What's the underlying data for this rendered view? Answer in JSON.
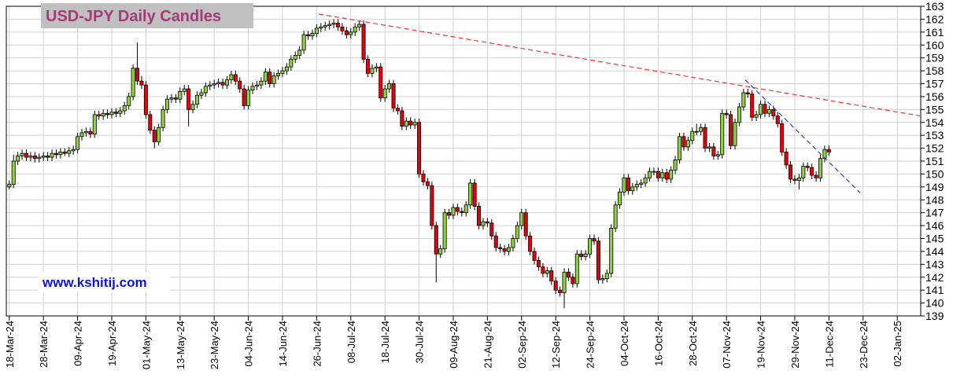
{
  "chart_data": {
    "type": "candlestick",
    "title": "USD-JPY Daily Candles",
    "watermark": "www.kshitij.com",
    "up_color": "#8fd13f",
    "down_color": "#e8000b",
    "grid": true,
    "xlim": [
      -0.7,
      213.5
    ],
    "ylim": [
      139,
      163
    ],
    "yticks": [
      139,
      140,
      141,
      142,
      143,
      144,
      145,
      146,
      147,
      148,
      149,
      150,
      151,
      152,
      153,
      154,
      155,
      156,
      157,
      158,
      159,
      160,
      161,
      162,
      163
    ],
    "xticks": [
      {
        "value": 0,
        "label": "18-Mar-24"
      },
      {
        "value": 8,
        "label": "28-Mar-24"
      },
      {
        "value": 16,
        "label": "09-Apr-24"
      },
      {
        "value": 24,
        "label": "19-Apr-24"
      },
      {
        "value": 32,
        "label": "01-May-24"
      },
      {
        "value": 40,
        "label": "13-May-24"
      },
      {
        "value": 48,
        "label": "23-May-24"
      },
      {
        "value": 56,
        "label": "04-Jun-24"
      },
      {
        "value": 64,
        "label": "14-Jun-24"
      },
      {
        "value": 72,
        "label": "26-Jun-24"
      },
      {
        "value": 80,
        "label": "08-Jul-24"
      },
      {
        "value": 88,
        "label": "18-Jul-24"
      },
      {
        "value": 96,
        "label": "30-Jul-24"
      },
      {
        "value": 104,
        "label": "09-Aug-24"
      },
      {
        "value": 112,
        "label": "21-Aug-24"
      },
      {
        "value": 120,
        "label": "02-Sep-24"
      },
      {
        "value": 128,
        "label": "12-Sep-24"
      },
      {
        "value": 136,
        "label": "24-Sep-24"
      },
      {
        "value": 144,
        "label": "04-Oct-24"
      },
      {
        "value": 152,
        "label": "16-Oct-24"
      },
      {
        "value": 160,
        "label": "28-Oct-24"
      },
      {
        "value": 168,
        "label": "07-Nov-24"
      },
      {
        "value": 176,
        "label": "19-Nov-24"
      },
      {
        "value": 184,
        "label": "29-Nov-24"
      },
      {
        "value": 192,
        "label": "11-Dec-24"
      },
      {
        "value": 200,
        "label": "23-Dec-24"
      },
      {
        "value": 208,
        "label": "02-Jan-25"
      }
    ],
    "x": [
      0,
      1,
      2,
      3,
      4,
      5,
      6,
      7,
      8,
      9,
      10,
      11,
      12,
      13,
      14,
      15,
      16,
      17,
      18,
      19,
      20,
      21,
      22,
      23,
      24,
      25,
      26,
      27,
      28,
      29,
      30,
      31,
      32,
      33,
      34,
      35,
      36,
      37,
      38,
      39,
      40,
      41,
      42,
      43,
      44,
      45,
      46,
      47,
      48,
      49,
      50,
      51,
      52,
      53,
      54,
      55,
      56,
      57,
      58,
      59,
      60,
      61,
      62,
      63,
      64,
      65,
      66,
      67,
      68,
      69,
      70,
      71,
      72,
      73,
      74,
      75,
      76,
      77,
      78,
      79,
      80,
      81,
      82,
      83,
      84,
      85,
      86,
      87,
      88,
      89,
      90,
      91,
      92,
      93,
      94,
      95,
      96,
      97,
      98,
      99,
      100,
      101,
      102,
      103,
      104,
      105,
      106,
      107,
      108,
      109,
      110,
      111,
      112,
      113,
      114,
      115,
      116,
      117,
      118,
      119,
      120,
      121,
      122,
      123,
      124,
      125,
      126,
      127,
      128,
      129,
      130,
      131,
      132,
      133,
      134,
      135,
      136,
      137,
      138,
      139,
      140,
      141,
      142,
      143,
      144,
      145,
      146,
      147,
      148,
      149,
      150,
      151,
      152,
      153,
      154,
      155,
      156,
      157,
      158,
      159,
      160,
      161,
      162,
      163,
      164,
      165,
      166,
      167,
      168,
      169,
      170,
      171,
      172,
      173,
      174,
      175,
      176,
      177,
      178,
      179,
      180,
      181,
      182,
      183,
      184,
      185,
      186,
      187,
      188,
      189,
      190,
      191,
      192
    ],
    "open": [
      149.0,
      149.2,
      151.0,
      151.4,
      151.6,
      151.3,
      151.4,
      151.2,
      151.3,
      151.4,
      151.3,
      151.6,
      151.5,
      151.7,
      151.6,
      151.8,
      151.9,
      152.9,
      153.2,
      153.3,
      153.1,
      154.6,
      154.5,
      154.7,
      154.6,
      154.8,
      154.7,
      154.9,
      155.3,
      156.0,
      158.2,
      157.2,
      156.9,
      154.6,
      153.4,
      152.5,
      153.6,
      155.0,
      155.8,
      155.9,
      155.8,
      156.4,
      156.6,
      155.0,
      155.4,
      156.1,
      156.3,
      156.8,
      156.9,
      157.0,
      157.1,
      156.9,
      157.3,
      157.7,
      157.2,
      156.6,
      155.3,
      156.5,
      156.8,
      156.9,
      157.2,
      157.9,
      157.0,
      157.6,
      157.8,
      158.0,
      158.3,
      158.9,
      159.2,
      159.6,
      160.8,
      160.7,
      160.9,
      161.3,
      161.4,
      161.5,
      161.6,
      161.7,
      161.4,
      161.1,
      160.8,
      161.0,
      161.4,
      161.6,
      158.9,
      157.8,
      158.2,
      158.3,
      155.9,
      156.6,
      157.0,
      155.1,
      154.9,
      153.7,
      154.1,
      153.8,
      154.0,
      150.0,
      149.4,
      149.1,
      146.0,
      143.8,
      144.2,
      147.0,
      146.8,
      147.4,
      147.1,
      147.0,
      147.6,
      149.3,
      147.5,
      146.0,
      146.3,
      146.2,
      145.2,
      144.3,
      144.2,
      144.0,
      144.3,
      145.0,
      146.0,
      147.0,
      145.2,
      144.0,
      143.3,
      142.8,
      142.3,
      142.5,
      141.7,
      141.0,
      140.8,
      142.4,
      142.0,
      141.5,
      143.8,
      143.6,
      143.8,
      145.0,
      144.8,
      141.8,
      141.9,
      142.3,
      145.8,
      147.6,
      148.6,
      149.7,
      148.7,
      149.0,
      149.2,
      149.3,
      149.7,
      150.2,
      150.2,
      149.7,
      150.1,
      149.6,
      150.3,
      151.1,
      152.9,
      152.1,
      152.6,
      153.3,
      153.3,
      153.6,
      152.0,
      152.1,
      151.4,
      151.5,
      154.7,
      154.6,
      152.2,
      154.0,
      155.2,
      156.3,
      156.2,
      154.4,
      154.6,
      155.4,
      154.7,
      155.0,
      154.5,
      153.9,
      151.7,
      150.7,
      149.6,
      149.5,
      149.7,
      150.6,
      150.5,
      149.9,
      149.7,
      151.2,
      151.9
    ],
    "high": [
      149.5,
      151.5,
      151.7,
      151.9,
      151.9,
      151.7,
      151.7,
      151.6,
      151.7,
      151.7,
      151.9,
      151.9,
      152.0,
      152.0,
      152.1,
      152.2,
      153.2,
      153.5,
      153.6,
      153.6,
      154.9,
      154.9,
      155.0,
      155.0,
      155.1,
      155.1,
      155.2,
      155.6,
      156.3,
      158.5,
      160.2,
      157.6,
      157.2,
      154.9,
      153.7,
      153.9,
      155.3,
      156.1,
      156.2,
      156.2,
      156.7,
      156.9,
      156.9,
      155.7,
      156.4,
      156.6,
      157.1,
      157.2,
      157.3,
      157.4,
      157.4,
      157.6,
      158.0,
      158.0,
      157.5,
      156.9,
      156.8,
      157.1,
      157.2,
      157.5,
      158.2,
      158.2,
      157.9,
      158.1,
      158.3,
      158.6,
      159.2,
      159.5,
      159.9,
      161.1,
      161.1,
      161.2,
      161.6,
      161.7,
      161.8,
      161.9,
      162.0,
      162.0,
      161.7,
      161.4,
      161.3,
      161.7,
      161.9,
      161.9,
      159.2,
      158.5,
      158.6,
      158.6,
      156.9,
      157.3,
      157.3,
      155.4,
      155.2,
      154.4,
      154.4,
      154.3,
      154.3,
      150.3,
      149.7,
      149.4,
      146.3,
      144.5,
      147.3,
      147.3,
      147.7,
      147.7,
      147.4,
      147.9,
      149.6,
      149.6,
      147.8,
      146.6,
      146.6,
      146.5,
      145.5,
      144.6,
      144.5,
      144.6,
      145.3,
      146.3,
      147.3,
      147.3,
      145.5,
      144.3,
      143.6,
      143.1,
      142.8,
      142.8,
      142.0,
      141.3,
      142.7,
      142.7,
      142.3,
      144.1,
      144.1,
      144.1,
      145.3,
      145.3,
      145.1,
      142.2,
      142.6,
      146.1,
      147.9,
      148.9,
      150.0,
      150.0,
      149.3,
      149.5,
      149.6,
      150.0,
      150.5,
      150.5,
      150.5,
      150.4,
      150.4,
      150.6,
      151.4,
      153.2,
      153.2,
      152.9,
      153.6,
      153.9,
      153.9,
      153.9,
      152.4,
      152.4,
      151.8,
      155.0,
      155.0,
      154.9,
      154.3,
      155.5,
      156.6,
      156.6,
      156.5,
      154.9,
      155.7,
      155.7,
      155.3,
      155.3,
      154.8,
      154.2,
      152.0,
      151.0,
      149.9,
      150.0,
      150.9,
      150.9,
      150.8,
      150.2,
      151.5,
      152.2,
      152.2
    ],
    "low": [
      148.8,
      148.9,
      150.7,
      151.1,
      151.0,
      151.0,
      150.9,
      150.9,
      151.0,
      151.0,
      151.0,
      151.2,
      151.2,
      151.4,
      151.3,
      151.5,
      151.6,
      152.6,
      152.9,
      152.8,
      152.8,
      154.2,
      154.2,
      154.3,
      154.3,
      154.4,
      154.4,
      154.6,
      155.0,
      155.7,
      156.9,
      156.6,
      154.3,
      153.1,
      152.0,
      152.2,
      153.3,
      154.7,
      155.5,
      155.5,
      155.5,
      156.1,
      153.7,
      154.7,
      155.1,
      155.8,
      156.0,
      156.5,
      156.6,
      156.7,
      156.6,
      156.6,
      157.0,
      156.9,
      156.3,
      155.0,
      155.0,
      156.2,
      156.5,
      156.6,
      156.9,
      156.7,
      156.7,
      157.3,
      157.5,
      157.7,
      158.0,
      158.6,
      158.9,
      159.3,
      160.4,
      160.4,
      160.6,
      161.0,
      161.1,
      161.2,
      161.3,
      161.1,
      160.8,
      160.5,
      160.5,
      160.7,
      161.1,
      158.6,
      157.5,
      157.5,
      157.9,
      155.6,
      155.6,
      156.3,
      154.8,
      154.6,
      153.4,
      153.4,
      153.5,
      153.5,
      149.7,
      149.1,
      148.8,
      145.7,
      141.6,
      143.5,
      143.9,
      146.5,
      146.5,
      146.8,
      146.7,
      146.7,
      147.3,
      147.2,
      145.7,
      145.7,
      145.9,
      144.9,
      144.0,
      143.9,
      143.7,
      143.7,
      144.0,
      144.7,
      145.7,
      144.9,
      143.7,
      143.0,
      142.5,
      142.0,
      142.0,
      141.4,
      140.7,
      140.5,
      139.6,
      141.7,
      141.2,
      141.2,
      143.3,
      143.3,
      143.5,
      144.5,
      141.5,
      141.5,
      141.6,
      142.0,
      145.5,
      147.3,
      148.3,
      148.4,
      148.4,
      148.7,
      148.9,
      149.0,
      149.4,
      149.9,
      149.4,
      149.4,
      149.3,
      149.3,
      150.0,
      150.8,
      151.8,
      151.8,
      152.3,
      153.0,
      153.0,
      151.7,
      151.7,
      151.1,
      151.1,
      151.2,
      154.3,
      151.9,
      151.9,
      153.7,
      154.9,
      155.9,
      154.1,
      154.1,
      154.3,
      154.4,
      154.4,
      154.2,
      153.6,
      151.4,
      150.4,
      149.3,
      149.2,
      148.8,
      149.4,
      150.2,
      149.6,
      149.4,
      149.4,
      150.9,
      151.4
    ],
    "close": [
      149.2,
      151.0,
      151.4,
      151.6,
      151.3,
      151.4,
      151.2,
      151.3,
      151.4,
      151.3,
      151.6,
      151.5,
      151.7,
      151.6,
      151.8,
      151.9,
      152.9,
      153.2,
      153.3,
      153.1,
      154.6,
      154.5,
      154.7,
      154.6,
      154.8,
      154.7,
      154.9,
      155.3,
      156.0,
      158.2,
      157.2,
      156.9,
      154.6,
      153.4,
      152.5,
      153.6,
      155.0,
      155.8,
      155.9,
      155.8,
      156.4,
      156.6,
      155.0,
      155.4,
      156.1,
      156.3,
      156.8,
      156.9,
      157.0,
      157.1,
      156.9,
      157.3,
      157.7,
      157.2,
      156.6,
      155.3,
      156.5,
      156.8,
      156.9,
      157.2,
      157.9,
      157.0,
      157.6,
      157.8,
      158.0,
      158.3,
      158.9,
      159.2,
      159.6,
      160.8,
      160.7,
      160.9,
      161.3,
      161.4,
      161.5,
      161.6,
      161.7,
      161.4,
      161.1,
      160.8,
      161.0,
      161.4,
      161.6,
      158.9,
      157.8,
      158.2,
      158.3,
      155.9,
      156.6,
      157.0,
      155.1,
      154.9,
      153.7,
      154.1,
      153.8,
      154.0,
      150.0,
      149.4,
      149.1,
      146.0,
      143.8,
      144.2,
      147.0,
      146.8,
      147.4,
      147.1,
      147.0,
      147.6,
      149.3,
      147.5,
      146.0,
      146.3,
      146.2,
      145.2,
      144.3,
      144.2,
      144.0,
      144.3,
      145.0,
      146.0,
      147.0,
      145.2,
      144.0,
      143.3,
      142.8,
      142.3,
      142.5,
      141.7,
      141.0,
      140.8,
      142.4,
      142.0,
      141.5,
      143.8,
      143.6,
      143.8,
      145.0,
      144.8,
      141.8,
      141.9,
      142.3,
      145.8,
      147.6,
      148.6,
      149.7,
      148.7,
      149.0,
      149.2,
      149.3,
      149.7,
      150.2,
      150.2,
      149.7,
      150.1,
      149.6,
      150.3,
      151.1,
      152.9,
      152.1,
      152.6,
      153.3,
      153.3,
      153.6,
      152.0,
      152.1,
      151.4,
      151.5,
      154.7,
      154.6,
      152.2,
      154.0,
      155.2,
      156.3,
      156.2,
      154.4,
      154.6,
      155.4,
      154.7,
      155.0,
      154.5,
      153.9,
      151.7,
      150.7,
      149.6,
      149.5,
      149.7,
      150.6,
      150.5,
      149.9,
      149.7,
      151.2,
      151.9,
      151.7
    ],
    "trendlines": [
      {
        "color": "#ff3030",
        "x": [
          72.5,
          213.5
        ],
        "y": [
          162.4,
          154.5
        ]
      },
      {
        "color": "#3040c0",
        "x": [
          172.4,
          199.3
        ],
        "y": [
          157.3,
          148.55
        ]
      }
    ]
  }
}
